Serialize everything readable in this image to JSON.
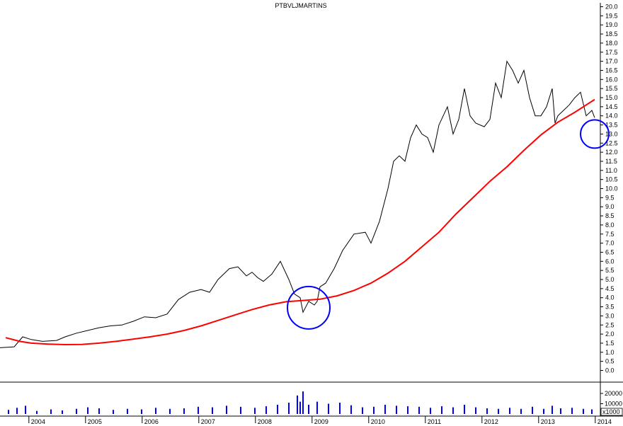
{
  "chart_data": {
    "type": "line",
    "title": "PTBVLJMARTINS",
    "price_axis": {
      "ylim": [
        0.0,
        20.0
      ],
      "tick_labels": [
        "0.0",
        "0.5",
        "1.0",
        "1.5",
        "2.0",
        "2.5",
        "3.0",
        "3.5",
        "4.0",
        "4.5",
        "5.0",
        "5.5",
        "6.0",
        "6.5",
        "7.0",
        "7.5",
        "8.0",
        "8.5",
        "9.0",
        "9.5",
        "10.0",
        "10.5",
        "11.0",
        "11.5",
        "12.0",
        "12.5",
        "13.0",
        "13.5",
        "14.0",
        "14.5",
        "15.0",
        "15.5",
        "16.0",
        "16.5",
        "17.0",
        "17.5",
        "18.0",
        "18.5",
        "19.0",
        "19.5",
        "20.0"
      ]
    },
    "volume_axis": {
      "tick_labels": [
        "20000",
        "10000"
      ],
      "unit_label": "x1000"
    },
    "x_axis": {
      "xlim": [
        2003.45,
        2014.05
      ],
      "tick_labels": [
        "2004",
        "2005",
        "2006",
        "2007",
        "2008",
        "2009",
        "2010",
        "2011",
        "2012",
        "2013",
        "2014"
      ]
    },
    "series": [
      {
        "type": "price",
        "color": "#000000",
        "x": [
          2003.45,
          2003.7,
          2003.85,
          2004.0,
          2004.2,
          2004.45,
          2004.6,
          2004.8,
          2005.0,
          2005.2,
          2005.4,
          2005.6,
          2005.8,
          2006.0,
          2006.2,
          2006.4,
          2006.6,
          2006.8,
          2007.0,
          2007.15,
          2007.3,
          2007.5,
          2007.65,
          2007.8,
          2007.9,
          2008.0,
          2008.1,
          2008.25,
          2008.4,
          2008.55,
          2008.65,
          2008.75,
          2008.8,
          2008.9,
          2009.0,
          2009.05,
          2009.1,
          2009.2,
          2009.35,
          2009.5,
          2009.7,
          2009.9,
          2010.0,
          2010.15,
          2010.3,
          2010.4,
          2010.5,
          2010.6,
          2010.7,
          2010.8,
          2010.9,
          2011.0,
          2011.1,
          2011.2,
          2011.35,
          2011.45,
          2011.55,
          2011.65,
          2011.75,
          2011.85,
          2012.0,
          2012.1,
          2012.2,
          2012.3,
          2012.4,
          2012.5,
          2012.6,
          2012.7,
          2012.8,
          2012.9,
          2013.0,
          2013.1,
          2013.2,
          2013.25,
          2013.3,
          2013.4,
          2013.5,
          2013.6,
          2013.7,
          2013.8,
          2013.9,
          2013.95
        ],
        "values": [
          1.25,
          1.3,
          1.85,
          1.7,
          1.6,
          1.65,
          1.85,
          2.05,
          2.2,
          2.35,
          2.45,
          2.5,
          2.7,
          2.95,
          2.9,
          3.1,
          3.9,
          4.3,
          4.45,
          4.3,
          5.0,
          5.6,
          5.7,
          5.2,
          5.4,
          5.1,
          4.9,
          5.3,
          6.0,
          5.0,
          4.2,
          4.0,
          3.2,
          3.8,
          3.6,
          3.8,
          4.6,
          4.8,
          5.6,
          6.6,
          7.5,
          7.6,
          7.0,
          8.2,
          10.0,
          11.5,
          11.8,
          11.5,
          12.8,
          13.5,
          13.0,
          12.8,
          12.0,
          13.5,
          14.5,
          13.0,
          13.8,
          15.5,
          14.0,
          13.6,
          13.4,
          13.8,
          15.8,
          15.0,
          17.0,
          16.5,
          15.8,
          16.5,
          15.0,
          14.0,
          14.0,
          14.5,
          15.5,
          13.6,
          14.0,
          14.3,
          14.6,
          15.0,
          15.3,
          14.0,
          14.3,
          13.9
        ]
      },
      {
        "type": "moving-average",
        "color": "#ff0000",
        "x": [
          2003.55,
          2003.8,
          2004.0,
          2004.3,
          2004.6,
          2004.9,
          2005.2,
          2005.5,
          2005.8,
          2006.1,
          2006.4,
          2006.7,
          2007.0,
          2007.3,
          2007.6,
          2007.9,
          2008.2,
          2008.5,
          2008.8,
          2009.1,
          2009.4,
          2009.7,
          2010.0,
          2010.3,
          2010.6,
          2010.9,
          2011.2,
          2011.5,
          2011.8,
          2012.1,
          2012.4,
          2012.7,
          2013.0,
          2013.3,
          2013.6,
          2013.8,
          2013.95
        ],
        "values": [
          1.8,
          1.6,
          1.5,
          1.45,
          1.42,
          1.43,
          1.5,
          1.6,
          1.72,
          1.85,
          2.0,
          2.2,
          2.45,
          2.75,
          3.05,
          3.35,
          3.6,
          3.78,
          3.85,
          3.92,
          4.1,
          4.4,
          4.8,
          5.35,
          6.0,
          6.8,
          7.6,
          8.6,
          9.5,
          10.4,
          11.2,
          12.1,
          12.95,
          13.65,
          14.2,
          14.6,
          14.9
        ]
      },
      {
        "type": "volume",
        "color": "#0000ff",
        "x": [
          2003.6,
          2003.75,
          2003.9,
          2004.1,
          2004.35,
          2004.55,
          2004.8,
          2005.0,
          2005.2,
          2005.45,
          2005.7,
          2005.95,
          2006.2,
          2006.45,
          2006.7,
          2006.95,
          2007.2,
          2007.45,
          2007.7,
          2007.95,
          2008.15,
          2008.35,
          2008.55,
          2008.7,
          2008.75,
          2008.8,
          2008.9,
          2009.05,
          2009.25,
          2009.45,
          2009.65,
          2009.85,
          2010.05,
          2010.25,
          2010.45,
          2010.65,
          2010.85,
          2011.05,
          2011.25,
          2011.45,
          2011.65,
          2011.85,
          2012.05,
          2012.25,
          2012.45,
          2012.65,
          2012.85,
          2013.05,
          2013.2,
          2013.35,
          2013.55,
          2013.75,
          2013.9
        ],
        "values": [
          4000,
          6000,
          8000,
          3000,
          4500,
          3500,
          5000,
          6500,
          5500,
          4000,
          5000,
          4500,
          6000,
          5000,
          5500,
          7000,
          6500,
          8000,
          7000,
          6000,
          7500,
          9000,
          11000,
          18000,
          12000,
          22000,
          9000,
          12000,
          10000,
          11000,
          8500,
          6500,
          7000,
          9000,
          8000,
          7500,
          7000,
          6000,
          7500,
          6500,
          9000,
          6500,
          5500,
          5000,
          6000,
          5000,
          7000,
          5000,
          8000,
          5500,
          6000,
          5000,
          4500
        ]
      }
    ],
    "annotations": [
      {
        "shape": "circle",
        "color": "#0000ff",
        "x": 2008.9,
        "y": 3.45
      },
      {
        "shape": "circle",
        "color": "#0000ff",
        "x": 2013.95,
        "y": 13.0
      }
    ]
  }
}
